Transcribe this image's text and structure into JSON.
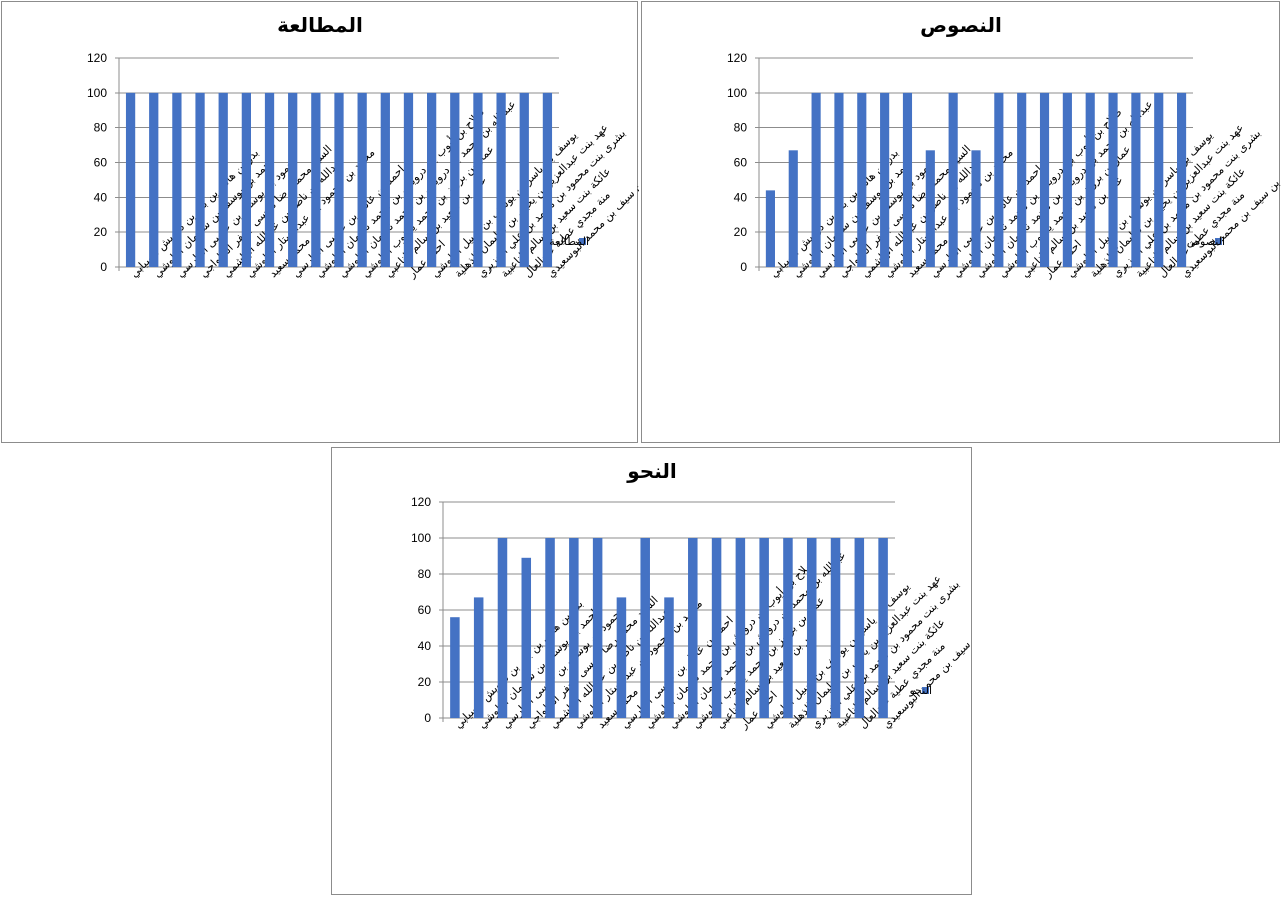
{
  "chart_data": [
    {
      "type": "bar",
      "title": "المطالعة",
      "ylim": [
        0,
        120
      ],
      "yticks": [
        0,
        20,
        40,
        60,
        80,
        100,
        120
      ],
      "grid": true,
      "legend_position": "right",
      "categories": [
        "بدر بن هاني بن بدر بن درويش السيابي",
        "احمد بن يوسف بن سليمان البلوشي",
        "حمود بن يوسف بن عيسى الفارسي",
        "السيد محمد رضا موسى جعفر الحلواجي",
        "عبدالله بن ناصر بن عبدالله الهاشمي",
        "محمد بن محمود بن عبدالستار البلوشي",
        "محمد سعيد",
        "احمد بن عادل بن عيسى الفارسي",
        "صلاح بن أيوب بن درويش بن محمد ناجمان البلوشي",
        "عبدالله بن محمد بن درويش بن محمد ناجمان البلوشي",
        "عمار بن برويز بن محمد يعقوب البلوشي",
        "عمر بن سعيد بن سالم الناعبي",
        "احمد عمار",
        "يوسف بن ياسر بن يوسف بن سبيل البلوشي",
        "عهد بنت عبدالعزيز بن يحيى بن سليمان الذهلية",
        "بشرى بنت محمود بن محمد بن علي الخزيري",
        "عائكة بنت سعيد بن سالم الناعبية",
        "منة مجدي عطية عبدالعال",
        "ريا بنت بدر بن سيف بن محمد البوسعيدي"
      ],
      "series": [
        {
          "name": "المطالعة",
          "color": "#4472C4",
          "values": [
            100,
            100,
            100,
            100,
            100,
            100,
            100,
            100,
            100,
            100,
            100,
            100,
            100,
            100,
            100,
            100,
            100,
            100,
            100
          ]
        }
      ]
    },
    {
      "type": "bar",
      "title": "النصوص",
      "ylim": [
        0,
        120
      ],
      "yticks": [
        0,
        20,
        40,
        60,
        80,
        100,
        120
      ],
      "grid": true,
      "legend_position": "right",
      "categories": [
        "بدر بن هاني بن بدر بن درويش السيابي",
        "احمد بن يوسف بن سليمان البلوشي",
        "حمود بن يوسف بن عيسى الفارسي",
        "السيد محمد رضا موسى جعفر الحلواجي",
        "عبدالله بن ناصر بن عبدالله الهاشمي",
        "محمد بن محمود بن عبدالستار البلوشي",
        "محمد سعيد",
        "احمد بن عادل بن عيسى الفارسي",
        "صلاح بن أيوب بن درويش بن محمد ناجمان البلوشي",
        "عبدالله بن محمد بن درويش بن محمد ناجمان البلوشي",
        "عمار بن برويز بن محمد يعقوب البلوشي",
        "عمر بن سعيد بن سالم الناعبي",
        "احمد عمار",
        "يوسف بن ياسر بن يوسف بن سبيل البلوشي",
        "عهد بنت عبدالعزيز بن يحيى بن سليمان الذهلية",
        "بشرى بنت محمود بن محمد بن علي الخزيري",
        "عائكة بنت سعيد بن سالم الناعبية",
        "منة مجدي عطية عبدالعال",
        "ريا بنت بدر بن سيف بن محمد البوسعيدي"
      ],
      "series": [
        {
          "name": "النصوص",
          "color": "#4472C4",
          "values": [
            44,
            67,
            100,
            100,
            100,
            100,
            100,
            67,
            100,
            67,
            100,
            100,
            100,
            100,
            100,
            100,
            100,
            100,
            100
          ]
        }
      ]
    },
    {
      "type": "bar",
      "title": "النحو",
      "ylim": [
        0,
        120
      ],
      "yticks": [
        0,
        20,
        40,
        60,
        80,
        100,
        120
      ],
      "grid": true,
      "legend_position": "right",
      "categories": [
        "بدر بن هاني بن بدر بن درويش السيابي",
        "احمد بن يوسف بن سليمان البلوشي",
        "حمود بن يوسف بن عيسى الفارسي",
        "السيد محمد رضا موسى جعفر الحلواجي",
        "عبدالله بن ناصر بن عبدالله الهاشمي",
        "محمد بن محمود بن عبدالستار البلوشي",
        "محمد سعيد",
        "احمد بن عادل بن عيسى الفارسي",
        "صلاح بن أيوب بن درويش بن محمد ناجمان البلوشي",
        "عبدالله بن محمد بن درويش بن محمد ناجمان البلوشي",
        "عمار بن برويز بن محمد يعقوب البلوشي",
        "عمر بن سعيد بن سالم الناعبي",
        "احمد عمار",
        "يوسف بن ياسر بن يوسف بن سبيل البلوشي",
        "عهد بنت عبدالعزيز بن يحيى بن سليمان الذهلية",
        "بشرى بنت محمود بن محمد بن علي الخزيري",
        "عائكة بنت سعيد بن سالم الناعبية",
        "منة مجدي عطية عبدالعال",
        "ريا بنت بدر بن سيف بن محمد البوسعيدي"
      ],
      "series": [
        {
          "name": "النحو",
          "color": "#4472C4",
          "values": [
            56,
            67,
            100,
            89,
            100,
            100,
            100,
            67,
            100,
            67,
            100,
            100,
            100,
            100,
            100,
            100,
            100,
            100,
            100
          ]
        }
      ]
    }
  ]
}
